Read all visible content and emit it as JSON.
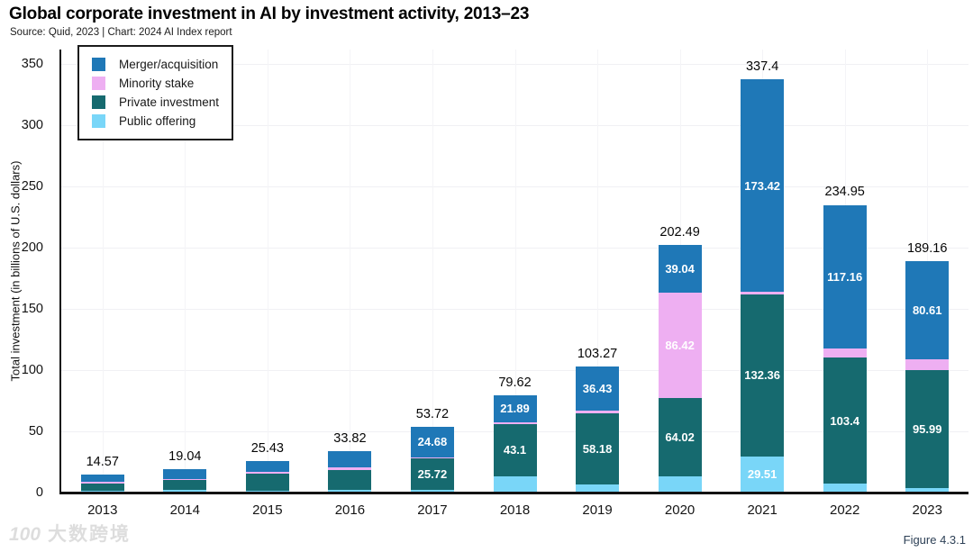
{
  "footer": {
    "figure_label": "Figure 4.3.1",
    "watermark_logo": "100",
    "watermark_text": "大数跨境"
  },
  "chart_data": {
    "type": "bar",
    "stacked": true,
    "title": "Global corporate investment in AI by investment activity, 2013–23",
    "source": "Source: Quid, 2023 | Chart: 2024 AI Index report",
    "ylabel": "Total investment (in billions of U.S. dollars)",
    "ylim": [
      0,
      350
    ],
    "yticks": [
      0,
      50,
      100,
      150,
      200,
      250,
      300,
      350
    ],
    "grid": true,
    "legend_position": "top-left",
    "legend": [
      {
        "key": "merger",
        "label": "Merger/acquisition",
        "color": "#1f78b7"
      },
      {
        "key": "minority",
        "label": "Minority stake",
        "color": "#eeaff2"
      },
      {
        "key": "private",
        "label": "Private investment",
        "color": "#166a6f"
      },
      {
        "key": "public",
        "label": "Public offering",
        "color": "#79d6f8"
      }
    ],
    "stack_order_bottom_to_top": [
      "public",
      "private",
      "minority",
      "merger"
    ],
    "categories": [
      "2013",
      "2014",
      "2015",
      "2016",
      "2017",
      "2018",
      "2019",
      "2020",
      "2021",
      "2022",
      "2023"
    ],
    "series": [
      {
        "name": "Merger/acquisition",
        "key": "merger",
        "values": [
          5.4,
          8.0,
          8.4,
          13.2,
          24.68,
          21.89,
          36.43,
          39.04,
          173.42,
          117.16,
          80.61
        ],
        "labels": [
          "",
          "",
          "",
          "",
          "24.68",
          "21.89",
          "36.43",
          "39.04",
          "173.42",
          "117.16",
          "80.61"
        ]
      },
      {
        "name": "Minority stake",
        "key": "minority",
        "values": [
          1.6,
          0.9,
          1.7,
          1.9,
          1.4,
          1.6,
          2.2,
          86.42,
          2.11,
          7.33,
          8.6
        ],
        "labels": [
          "",
          "",
          "",
          "",
          "",
          "",
          "",
          "86.42",
          "",
          "",
          ""
        ]
      },
      {
        "name": "Private investment",
        "key": "private",
        "values": [
          6.1,
          8.1,
          13.9,
          16.3,
          25.72,
          43.1,
          58.18,
          64.02,
          132.36,
          103.4,
          95.99
        ],
        "labels": [
          "",
          "",
          "",
          "",
          "25.72",
          "43.1",
          "58.18",
          "64.02",
          "132.36",
          "103.4",
          "95.99"
        ]
      },
      {
        "name": "Public offering",
        "key": "public",
        "values": [
          1.47,
          2.04,
          1.43,
          2.42,
          1.92,
          13.03,
          6.46,
          13.01,
          29.51,
          7.06,
          3.96
        ],
        "labels": [
          "",
          "",
          "",
          "",
          "",
          "",
          "",
          "",
          "29.51",
          "",
          ""
        ]
      }
    ],
    "totals": [
      14.57,
      19.04,
      25.43,
      33.82,
      53.72,
      79.62,
      103.27,
      202.49,
      337.4,
      234.95,
      189.16
    ],
    "total_labels": [
      "14.57",
      "19.04",
      "25.43",
      "33.82",
      "53.72",
      "79.62",
      "103.27",
      "202.49",
      "337.4",
      "234.95",
      "189.16"
    ]
  }
}
